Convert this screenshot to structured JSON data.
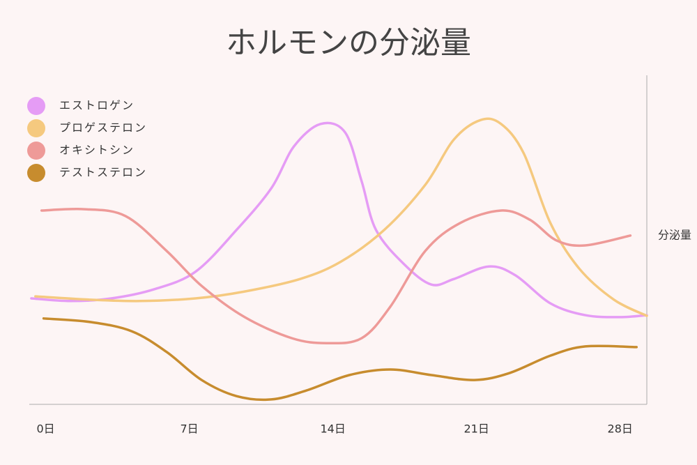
{
  "chart_data": {
    "type": "line",
    "title": "ホルモンの分泌量",
    "ylabel": "分泌量",
    "xlim": [
      -0.8,
      29.3
    ],
    "xticks": [
      {
        "value": 0,
        "label": "0日"
      },
      {
        "value": 7,
        "label": "7日"
      },
      {
        "value": 14,
        "label": "14日"
      },
      {
        "value": 21,
        "label": "21日"
      },
      {
        "value": 28,
        "label": "28日"
      }
    ],
    "ylim": [
      0,
      100
    ],
    "legend": "upper left",
    "series": [
      {
        "name": "エストロゲン",
        "color": "#e59cf5",
        "x": [
          -0.7,
          1.2,
          3.2,
          5.3,
          7.3,
          9.3,
          11.0,
          12.1,
          13.4,
          14.6,
          15.4,
          16.1,
          17.5,
          18.8,
          19.9,
          21.6,
          22.9,
          24.6,
          26.3,
          28.0,
          29.3
        ],
        "values": [
          32.2,
          31.4,
          32.2,
          35.0,
          40.3,
          53.0,
          65.7,
          78.4,
          85.2,
          82.6,
          67.8,
          53.0,
          42.4,
          36.4,
          38.1,
          41.9,
          39.2,
          30.7,
          27.1,
          26.5,
          27.1
        ]
      },
      {
        "name": "プロゲステロン",
        "color": "#f5c97f",
        "x": [
          -0.5,
          2.2,
          4.6,
          7.3,
          9.7,
          12.4,
          14.4,
          16.5,
          18.5,
          19.9,
          21.2,
          22.2,
          23.3,
          24.6,
          26.0,
          27.7,
          29.3
        ],
        "values": [
          32.8,
          31.8,
          31.4,
          32.2,
          34.3,
          38.1,
          43.4,
          53.0,
          66.7,
          80.5,
          86.4,
          85.2,
          76.3,
          55.1,
          41.3,
          31.8,
          26.9
        ]
      },
      {
        "name": "オキシトシン",
        "color": "#ee9a98",
        "x": [
          -0.2,
          1.9,
          3.9,
          5.9,
          7.6,
          9.7,
          12.0,
          13.7,
          15.4,
          16.8,
          18.5,
          20.2,
          22.2,
          23.6,
          24.9,
          26.3,
          28.5
        ],
        "values": [
          58.9,
          59.3,
          57.2,
          46.6,
          36.0,
          26.5,
          20.1,
          18.6,
          20.1,
          29.7,
          46.6,
          55.1,
          58.9,
          56.1,
          49.8,
          48.3,
          51.3
        ]
      },
      {
        "name": "テストステロン",
        "color": "#c78c2e",
        "x": [
          -0.1,
          2.2,
          4.2,
          5.9,
          7.6,
          9.3,
          11.0,
          12.7,
          14.8,
          16.8,
          18.8,
          20.9,
          22.6,
          24.6,
          26.3,
          28.8
        ],
        "values": [
          26.1,
          25.0,
          22.2,
          15.9,
          7.4,
          2.5,
          1.5,
          4.2,
          8.9,
          10.6,
          8.9,
          7.4,
          9.5,
          14.8,
          17.6,
          17.4
        ]
      }
    ]
  }
}
